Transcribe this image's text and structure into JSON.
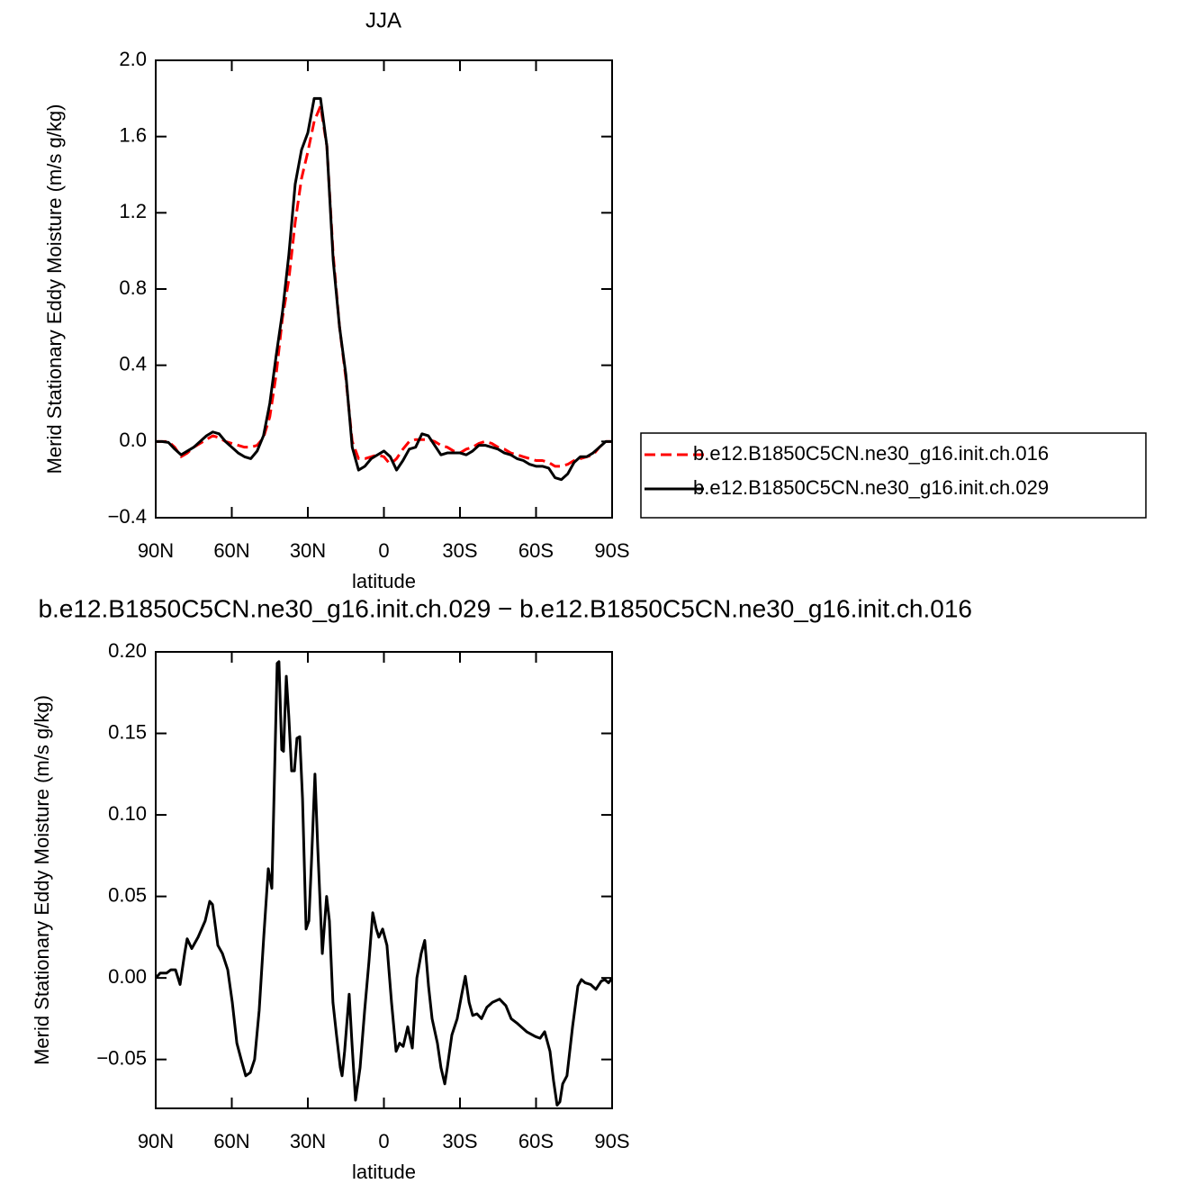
{
  "chart_data": [
    {
      "type": "line",
      "title": "JJA",
      "x_label": "latitude",
      "y_label": "Merid Stationary Eddy Moisture (m/s g/kg)",
      "x": [
        90,
        87.5,
        85,
        82.5,
        80,
        77.5,
        75,
        72.5,
        70,
        67.5,
        65,
        62.5,
        60,
        57.5,
        55,
        52.5,
        50,
        47.5,
        45,
        42.5,
        40,
        37.5,
        35,
        32.5,
        30,
        27.5,
        25,
        22.5,
        20,
        17.5,
        15,
        12.5,
        10,
        7.5,
        5,
        2.5,
        0,
        -2.5,
        -5,
        -7.5,
        -10,
        -12.5,
        -15,
        -17.5,
        -20,
        -22.5,
        -25,
        -27.5,
        -30,
        -32.5,
        -35,
        -37.5,
        -40,
        -42.5,
        -45,
        -47.5,
        -50,
        -52.5,
        -55,
        -57.5,
        -60,
        -62.5,
        -65,
        -67.5,
        -70,
        -72.5,
        -75,
        -77.5,
        -80,
        -82.5,
        -85,
        -87.5,
        -90
      ],
      "series": [
        {
          "name": "b.e12.B1850C5CN.ne30_g16.init.ch.016",
          "color": "#ff0000",
          "style": "dashed",
          "values": [
            0,
            0,
            0,
            -0.03,
            -0.08,
            -0.06,
            -0.03,
            -0.01,
            0.01,
            0.03,
            0.02,
            0,
            -0.01,
            -0.02,
            -0.03,
            -0.03,
            -0.02,
            0.02,
            0.13,
            0.35,
            0.65,
            0.85,
            1.15,
            1.38,
            1.52,
            1.68,
            1.76,
            1.55,
            0.98,
            0.6,
            0.33,
            0,
            -0.09,
            -0.09,
            -0.08,
            -0.07,
            -0.08,
            -0.12,
            -0.09,
            -0.04,
            0,
            0.01,
            0.01,
            0.01,
            0,
            -0.02,
            -0.03,
            -0.05,
            -0.06,
            -0.04,
            -0.03,
            -0.01,
            0,
            -0.01,
            -0.03,
            -0.04,
            -0.06,
            -0.07,
            -0.08,
            -0.09,
            -0.1,
            -0.1,
            -0.11,
            -0.13,
            -0.13,
            -0.12,
            -0.1,
            -0.09,
            -0.08,
            -0.07,
            -0.03,
            0,
            0
          ]
        },
        {
          "name": "b.e12.B1850C5CN.ne30_g16.init.ch.029",
          "color": "#000000",
          "style": "solid",
          "values": [
            0,
            0,
            -0.005,
            -0.04,
            -0.07,
            -0.05,
            -0.03,
            0,
            0.03,
            0.05,
            0.04,
            0,
            -0.03,
            -0.06,
            -0.08,
            -0.09,
            -0.05,
            0.03,
            0.2,
            0.45,
            0.68,
            0.98,
            1.35,
            1.53,
            1.62,
            1.8,
            1.8,
            1.55,
            0.95,
            0.6,
            0.35,
            -0.03,
            -0.15,
            -0.13,
            -0.09,
            -0.07,
            -0.05,
            -0.08,
            -0.15,
            -0.1,
            -0.04,
            -0.03,
            0.04,
            0.03,
            -0.02,
            -0.07,
            -0.06,
            -0.06,
            -0.06,
            -0.07,
            -0.05,
            -0.02,
            -0.02,
            -0.03,
            -0.04,
            -0.06,
            -0.07,
            -0.09,
            -0.1,
            -0.12,
            -0.13,
            -0.13,
            -0.14,
            -0.19,
            -0.2,
            -0.17,
            -0.11,
            -0.08,
            -0.08,
            -0.06,
            -0.03,
            0,
            0
          ]
        }
      ],
      "xlim": [
        90,
        -90
      ],
      "xticks": [
        {
          "value": 90,
          "label": "90N"
        },
        {
          "value": 60,
          "label": "60N"
        },
        {
          "value": 30,
          "label": "30N"
        },
        0,
        {
          "value": -30,
          "label": "30S"
        },
        {
          "value": -60,
          "label": "60S"
        },
        {
          "value": -90,
          "label": "90S"
        }
      ],
      "ylim": [
        -0.4,
        2.0
      ],
      "yticks": [
        {
          "value": -0.4,
          "label": "−0.4"
        },
        {
          "value": 0,
          "label": "0.0"
        },
        0.4,
        0.8,
        1.2,
        1.6,
        {
          "value": 2.0,
          "label": "2.0"
        }
      ],
      "legend": "outside-right",
      "grid": false
    },
    {
      "type": "line",
      "title": "b.e12.B1850C5CN.ne30_g16.init.ch.029 − b.e12.B1850C5CN.ne30_g16.init.ch.016",
      "x_label": "latitude",
      "y_label": "Merid Stationary Eddy Moisture (m/s g/kg)",
      "x": [
        90,
        88.2,
        85.7,
        84,
        82.2,
        80.4,
        78.6,
        77.6,
        75.8,
        73.3,
        70.5,
        68.7,
        67.6,
        65.5,
        63.7,
        61.6,
        59.8,
        58,
        56.3,
        54.5,
        52.7,
        51,
        49.2,
        47.4,
        45.6,
        44.2,
        42.1,
        41.4,
        40.3,
        39.6,
        38.5,
        37.5,
        36.4,
        35.3,
        34.3,
        33.2,
        32.1,
        30.7,
        29.6,
        28.6,
        27.2,
        26.1,
        24.3,
        22.6,
        21.5,
        20.1,
        18.7,
        17.2,
        16.5,
        15.5,
        13.7,
        12.6,
        11.2,
        9.4,
        7.6,
        5.9,
        4.4,
        3,
        2,
        0.5,
        -1.2,
        -3,
        -4.8,
        -6.2,
        -7.6,
        -9.4,
        -11.2,
        -13,
        -14.7,
        -16.1,
        -17.6,
        -19,
        -21.1,
        -22.5,
        -24,
        -25,
        -26.8,
        -28.9,
        -30.7,
        -32.1,
        -33.6,
        -35,
        -36.7,
        -38.5,
        -40.6,
        -42.8,
        -45.6,
        -48.1,
        -50.2,
        -52.7,
        -56.3,
        -59.8,
        -61.6,
        -63.4,
        -65.5,
        -66.9,
        -68.3,
        -69.4,
        -70.5,
        -72.2,
        -74.4,
        -76.5,
        -77.9,
        -79.4,
        -81.5,
        -83.6,
        -85.7,
        -87.1,
        -88.6,
        -90
      ],
      "values": [
        0,
        0.003,
        0.003,
        0.005,
        0.005,
        -0.004,
        0.015,
        0.024,
        0.018,
        0.025,
        0.035,
        0.047,
        0.045,
        0.02,
        0.015,
        0.005,
        -0.015,
        -0.04,
        -0.05,
        -0.06,
        -0.058,
        -0.05,
        -0.02,
        0.025,
        0.067,
        0.055,
        0.193,
        0.194,
        0.14,
        0.139,
        0.185,
        0.16,
        0.127,
        0.127,
        0.147,
        0.148,
        0.11,
        0.03,
        0.035,
        0.07,
        0.125,
        0.08,
        0.015,
        0.05,
        0.035,
        -0.015,
        -0.035,
        -0.055,
        -0.06,
        -0.045,
        -0.01,
        -0.04,
        -0.075,
        -0.055,
        -0.02,
        0.01,
        0.04,
        0.03,
        0.025,
        0.03,
        0.02,
        -0.015,
        -0.045,
        -0.04,
        -0.042,
        -0.03,
        -0.043,
        0,
        0.015,
        0.023,
        -0.005,
        -0.025,
        -0.04,
        -0.055,
        -0.065,
        -0.055,
        -0.035,
        -0.025,
        -0.01,
        0.001,
        -0.015,
        -0.023,
        -0.022,
        -0.025,
        -0.018,
        -0.015,
        -0.013,
        -0.017,
        -0.025,
        -0.028,
        -0.033,
        -0.036,
        -0.037,
        -0.033,
        -0.045,
        -0.063,
        -0.078,
        -0.076,
        -0.065,
        -0.06,
        -0.03,
        -0.005,
        -0.001,
        -0.003,
        -0.004,
        -0.007,
        -0.002,
        -0.001,
        -0.003,
        0
      ],
      "color": "#000000",
      "xlim": [
        90,
        -90
      ],
      "xticks": [
        {
          "value": 90,
          "label": "90N"
        },
        {
          "value": 60,
          "label": "60N"
        },
        {
          "value": 30,
          "label": "30N"
        },
        0,
        {
          "value": -30,
          "label": "30S"
        },
        {
          "value": -60,
          "label": "60S"
        },
        {
          "value": -90,
          "label": "90S"
        }
      ],
      "ylim": [
        -0.08,
        0.2
      ],
      "yticks": [
        {
          "value": -0.05,
          "label": "−0.05"
        },
        {
          "value": 0,
          "label": "0.00"
        },
        0.05,
        {
          "value": 0.1,
          "label": "0.10"
        },
        0.15,
        {
          "value": 0.2,
          "label": "0.20"
        }
      ],
      "grid": false
    }
  ]
}
